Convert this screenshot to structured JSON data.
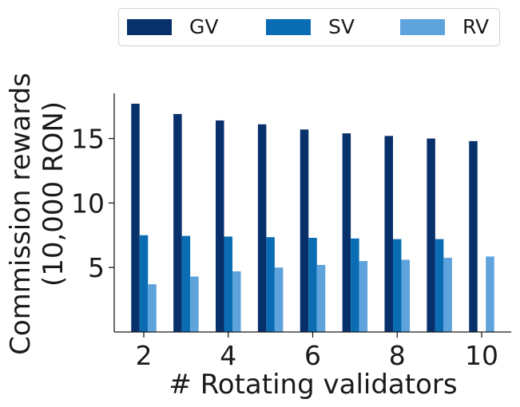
{
  "chart_data": {
    "type": "bar",
    "xlabel": "# Rotating validators",
    "ylabel_line1": "Commission rewards",
    "ylabel_line2": "(10,000 RON)",
    "categories": [
      2,
      3,
      4,
      5,
      6,
      7,
      8,
      9,
      10
    ],
    "x_ticks": [
      "2",
      "4",
      "6",
      "8",
      "10"
    ],
    "y_ticks": [
      "5",
      "10",
      "15"
    ],
    "ylim": [
      0,
      18.5
    ],
    "xlim": [
      1.3,
      10.7
    ],
    "series": [
      {
        "name": "GV",
        "color": "#08306b",
        "values": [
          17.7,
          16.9,
          16.4,
          16.1,
          15.7,
          15.4,
          15.2,
          15.0,
          14.8
        ]
      },
      {
        "name": "SV",
        "color": "#0a6db3",
        "values": [
          7.5,
          7.45,
          7.4,
          7.35,
          7.3,
          7.25,
          7.2,
          7.2,
          null
        ]
      },
      {
        "name": "RV",
        "color": "#5ea3dc",
        "values": [
          3.7,
          4.3,
          4.7,
          5.0,
          5.2,
          5.5,
          5.6,
          5.75,
          5.85
        ]
      }
    ],
    "legend_position": "top-center"
  }
}
